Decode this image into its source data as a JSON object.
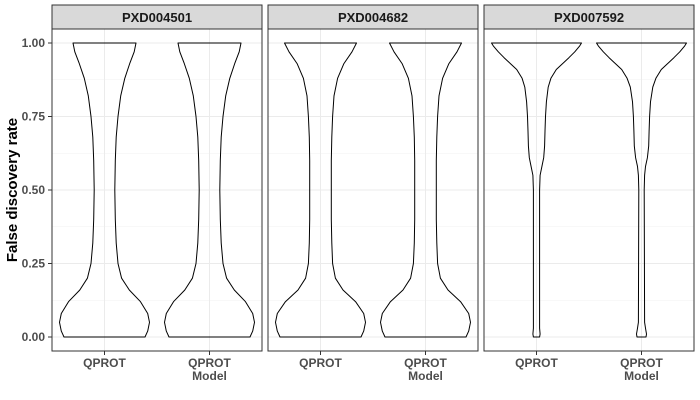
{
  "chart_data": {
    "type": "violin",
    "ylabel": "False discovery rate",
    "ylim": [
      0,
      1
    ],
    "yticks": [
      0.0,
      0.25,
      0.5,
      0.75,
      1.0
    ],
    "ytick_labels": [
      "0.00",
      "0.25",
      "0.50",
      "0.75",
      "1.00"
    ],
    "categories": [
      "QPROT",
      "QPROT\nModel"
    ],
    "grid": true,
    "panel_background": "#ffffff",
    "strip_background": "#d9d9d9",
    "gridline_color": "#ebebeb",
    "outline_color": "#000000",
    "panels": [
      {
        "title": "PXD004501",
        "violins": [
          {
            "category": "QPROT",
            "width_by_y": [
              [
                0.0,
                0.9
              ],
              [
                0.02,
                0.96
              ],
              [
                0.05,
                1.0
              ],
              [
                0.08,
                0.96
              ],
              [
                0.12,
                0.8
              ],
              [
                0.16,
                0.55
              ],
              [
                0.2,
                0.38
              ],
              [
                0.25,
                0.3
              ],
              [
                0.32,
                0.26
              ],
              [
                0.4,
                0.24
              ],
              [
                0.5,
                0.23
              ],
              [
                0.6,
                0.24
              ],
              [
                0.68,
                0.26
              ],
              [
                0.75,
                0.3
              ],
              [
                0.82,
                0.36
              ],
              [
                0.88,
                0.45
              ],
              [
                0.93,
                0.56
              ],
              [
                0.97,
                0.66
              ],
              [
                1.0,
                0.7
              ]
            ]
          },
          {
            "category": "QPROT\nModel",
            "width_by_y": [
              [
                0.0,
                0.9
              ],
              [
                0.02,
                0.96
              ],
              [
                0.05,
                1.0
              ],
              [
                0.08,
                0.96
              ],
              [
                0.12,
                0.8
              ],
              [
                0.16,
                0.55
              ],
              [
                0.2,
                0.38
              ],
              [
                0.25,
                0.3
              ],
              [
                0.32,
                0.26
              ],
              [
                0.4,
                0.24
              ],
              [
                0.5,
                0.23
              ],
              [
                0.6,
                0.24
              ],
              [
                0.68,
                0.26
              ],
              [
                0.75,
                0.3
              ],
              [
                0.82,
                0.36
              ],
              [
                0.88,
                0.45
              ],
              [
                0.93,
                0.56
              ],
              [
                0.97,
                0.66
              ],
              [
                1.0,
                0.7
              ]
            ]
          }
        ]
      },
      {
        "title": "PXD004682",
        "violins": [
          {
            "category": "QPROT",
            "width_by_y": [
              [
                0.0,
                0.9
              ],
              [
                0.02,
                0.96
              ],
              [
                0.05,
                1.0
              ],
              [
                0.08,
                0.96
              ],
              [
                0.12,
                0.78
              ],
              [
                0.16,
                0.5
              ],
              [
                0.2,
                0.33
              ],
              [
                0.25,
                0.27
              ],
              [
                0.32,
                0.25
              ],
              [
                0.4,
                0.24
              ],
              [
                0.5,
                0.24
              ],
              [
                0.6,
                0.24
              ],
              [
                0.68,
                0.25
              ],
              [
                0.75,
                0.27
              ],
              [
                0.82,
                0.3
              ],
              [
                0.88,
                0.38
              ],
              [
                0.93,
                0.52
              ],
              [
                0.97,
                0.7
              ],
              [
                1.0,
                0.8
              ]
            ]
          },
          {
            "category": "QPROT\nModel",
            "width_by_y": [
              [
                0.0,
                0.9
              ],
              [
                0.02,
                0.96
              ],
              [
                0.05,
                1.0
              ],
              [
                0.08,
                0.96
              ],
              [
                0.12,
                0.78
              ],
              [
                0.16,
                0.5
              ],
              [
                0.2,
                0.33
              ],
              [
                0.25,
                0.27
              ],
              [
                0.32,
                0.25
              ],
              [
                0.4,
                0.24
              ],
              [
                0.5,
                0.24
              ],
              [
                0.6,
                0.24
              ],
              [
                0.68,
                0.25
              ],
              [
                0.75,
                0.27
              ],
              [
                0.82,
                0.3
              ],
              [
                0.88,
                0.38
              ],
              [
                0.93,
                0.52
              ],
              [
                0.97,
                0.7
              ],
              [
                1.0,
                0.8
              ]
            ]
          }
        ]
      },
      {
        "title": "PXD007592",
        "violins": [
          {
            "category": "QPROT",
            "width_by_y": [
              [
                0.0,
                0.07
              ],
              [
                0.01,
                0.08
              ],
              [
                0.03,
                0.07
              ],
              [
                0.5,
                0.07
              ],
              [
                0.55,
                0.08
              ],
              [
                0.58,
                0.12
              ],
              [
                0.61,
                0.16
              ],
              [
                0.65,
                0.18
              ],
              [
                0.7,
                0.19
              ],
              [
                0.75,
                0.2
              ],
              [
                0.8,
                0.22
              ],
              [
                0.85,
                0.26
              ],
              [
                0.88,
                0.32
              ],
              [
                0.91,
                0.44
              ],
              [
                0.93,
                0.58
              ],
              [
                0.95,
                0.72
              ],
              [
                0.97,
                0.85
              ],
              [
                0.99,
                0.96
              ],
              [
                1.0,
                1.0
              ]
            ]
          },
          {
            "category": "QPROT\nModel",
            "width_by_y": [
              [
                0.0,
                0.1
              ],
              [
                0.01,
                0.11
              ],
              [
                0.03,
                0.09
              ],
              [
                0.05,
                0.07
              ],
              [
                0.5,
                0.06
              ],
              [
                0.55,
                0.07
              ],
              [
                0.58,
                0.09
              ],
              [
                0.61,
                0.13
              ],
              [
                0.65,
                0.16
              ],
              [
                0.7,
                0.17
              ],
              [
                0.75,
                0.18
              ],
              [
                0.8,
                0.2
              ],
              [
                0.85,
                0.25
              ],
              [
                0.88,
                0.32
              ],
              [
                0.91,
                0.44
              ],
              [
                0.93,
                0.58
              ],
              [
                0.95,
                0.72
              ],
              [
                0.97,
                0.85
              ],
              [
                0.99,
                0.96
              ],
              [
                1.0,
                1.0
              ]
            ]
          }
        ]
      }
    ]
  }
}
